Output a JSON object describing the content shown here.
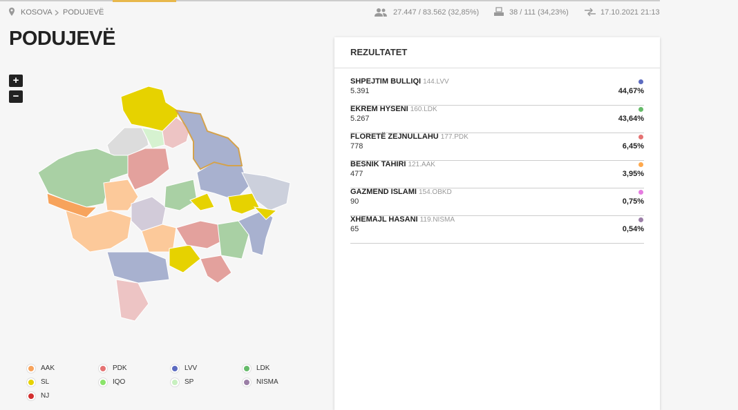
{
  "breadcrumb": [
    "KOSOVA",
    "PODUJEVË"
  ],
  "stats": {
    "voters": "27.447 / 83.562 (32,85%)",
    "stations": "38 / 111 (34,23%)",
    "updated": "17.10.2021 21:13"
  },
  "title": "PODUJEVË",
  "zoom": [
    "+",
    "−"
  ],
  "results": {
    "title": "REZULTATET",
    "candidates": [
      {
        "name": "SHPEJTIM BULLIQI",
        "code": "144.LVV",
        "votes": "5.391",
        "percent": "44,67%",
        "color": "#5c6bc0"
      },
      {
        "name": "EKREM HYSENI",
        "code": "160.LDK",
        "votes": "5.267",
        "percent": "43,64%",
        "color": "#66bb6a"
      },
      {
        "name": "FLORETË ZEJNULLAHU",
        "code": "177.PDK",
        "votes": "778",
        "percent": "6,45%",
        "color": "#e57373"
      },
      {
        "name": "BESNIK TAHIRI",
        "code": "121.AAK",
        "votes": "477",
        "percent": "3,95%",
        "color": "#ffa94d"
      },
      {
        "name": "GAZMEND ISLAMI",
        "code": "154.OBKD",
        "votes": "90",
        "percent": "0,75%",
        "color": "#e57ce0"
      },
      {
        "name": "XHEMAJL HASANI",
        "code": "119.NISMA",
        "votes": "65",
        "percent": "0,54%",
        "color": "#9c7fa8"
      }
    ]
  },
  "legend": [
    {
      "label": "AAK",
      "color": "#f7a35c"
    },
    {
      "label": "PDK",
      "color": "#e57373"
    },
    {
      "label": "LVV",
      "color": "#5c6bc0"
    },
    {
      "label": "LDK",
      "color": "#66bb6a"
    },
    {
      "label": "SL",
      "color": "#e6d200"
    },
    {
      "label": "IQO",
      "color": "#8be46b"
    },
    {
      "label": "SP",
      "color": "#c8f0c0"
    },
    {
      "label": "NISMA",
      "color": "#9b7fa6"
    },
    {
      "label": "NJ",
      "color": "#d32f2f"
    }
  ]
}
